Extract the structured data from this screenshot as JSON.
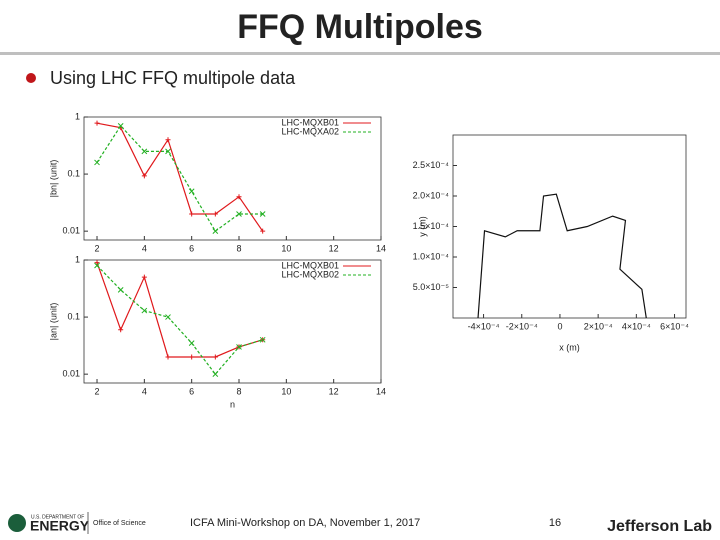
{
  "header": {
    "title": "FFQ Multipoles"
  },
  "bullet": "Using LHC FFQ multipole data",
  "chart_data": [
    {
      "type": "line",
      "log_y": true,
      "y_label": "|bn| (unit)",
      "x": [
        2,
        3,
        4,
        5,
        6,
        7,
        8,
        9
      ],
      "series": [
        {
          "name": "LHC-MQXB01",
          "color": "#e0191c",
          "dashed": false,
          "values": [
            0.78,
            0.65,
            0.093,
            0.4,
            0.02,
            0.02,
            0.04,
            0.01
          ]
        },
        {
          "name": "LHC-MQXA02",
          "color": "#22b022",
          "dashed": true,
          "values": [
            0.16,
            0.7,
            0.25,
            0.25,
            0.05,
            0.01,
            0.02,
            0.02
          ]
        }
      ],
      "xlim": [
        1.45,
        14
      ],
      "xticks": [
        2,
        4,
        6,
        8,
        10,
        12,
        14
      ],
      "ylim": [
        0.007,
        1
      ],
      "yticks": [
        1,
        0.1,
        0.01
      ],
      "legend": "upper right"
    },
    {
      "type": "line",
      "log_y": true,
      "y_label": "|an| (unit)",
      "x_label": "n",
      "x": [
        2,
        3,
        4,
        5,
        6,
        7,
        8,
        9
      ],
      "series": [
        {
          "name": "LHC-MQXB01",
          "color": "#e0191c",
          "dashed": false,
          "values": [
            0.9,
            0.06,
            0.5,
            0.02,
            0.02,
            0.02,
            0.03,
            0.04
          ]
        },
        {
          "name": "LHC-MQXB02",
          "color": "#22b022",
          "dashed": true,
          "values": [
            0.8,
            0.3,
            0.13,
            0.1,
            0.035,
            0.01,
            0.03,
            0.04
          ]
        }
      ],
      "xlim": [
        1.45,
        14
      ],
      "xticks": [
        2,
        4,
        6,
        8,
        10,
        12,
        14
      ],
      "ylim": [
        0.007,
        1
      ],
      "yticks": [
        1,
        0.1,
        0.01
      ],
      "legend": "upper right"
    },
    {
      "type": "line",
      "log_y": false,
      "x_label": "x (m)",
      "y_label": "y (m)",
      "x": [
        -0.000429,
        -0.000395,
        -0.000286,
        -0.000224,
        -0.000105,
        -8.6e-05,
        -1.9e-05,
        3.8e-05,
        0.000143,
        0.000276,
        0.000343,
        0.000314,
        0.000429,
        0.000452
      ],
      "series": [
        {
          "color": "#111111",
          "dashed": false,
          "values": [
            0,
            0.000143,
            0.000133,
            0.000143,
            0.000143,
            0.0002,
            0.000203,
            0.000143,
            0.00015,
            0.000167,
            0.00016,
            8e-05,
            4.7e-05,
            0
          ]
        }
      ],
      "xlim": [
        -0.00056,
        0.00066
      ],
      "xticks": [
        {
          "value": -0.0004,
          "label": "-4×10⁻⁴"
        },
        {
          "value": -0.0002,
          "label": "-2×10⁻⁴"
        },
        0,
        {
          "value": 0.0002,
          "label": "2×10⁻⁴"
        },
        {
          "value": 0.0004,
          "label": "4×10⁻⁴"
        },
        {
          "value": 0.0006,
          "label": "6×10⁻⁴"
        }
      ],
      "ylim": [
        0,
        0.0003
      ],
      "yticks": [
        {
          "value": 5e-05,
          "label": "5.0×10⁻⁵"
        },
        {
          "value": 0.0001,
          "label": "1.0×10⁻⁴"
        },
        {
          "value": 0.00015,
          "label": "1.5×10⁻⁴"
        },
        {
          "value": 0.0002,
          "label": "2.0×10⁻⁴"
        },
        {
          "value": 0.00025,
          "label": "2.5×10⁻⁴"
        }
      ]
    }
  ],
  "footer": {
    "agency": "U.S. DEPARTMENT OF",
    "energy": "ENERGY",
    "office": "Office of Science",
    "event": "ICFA Mini-Workshop on DA, November 1, 2017",
    "page": "16",
    "lab": "Jefferson Lab"
  }
}
